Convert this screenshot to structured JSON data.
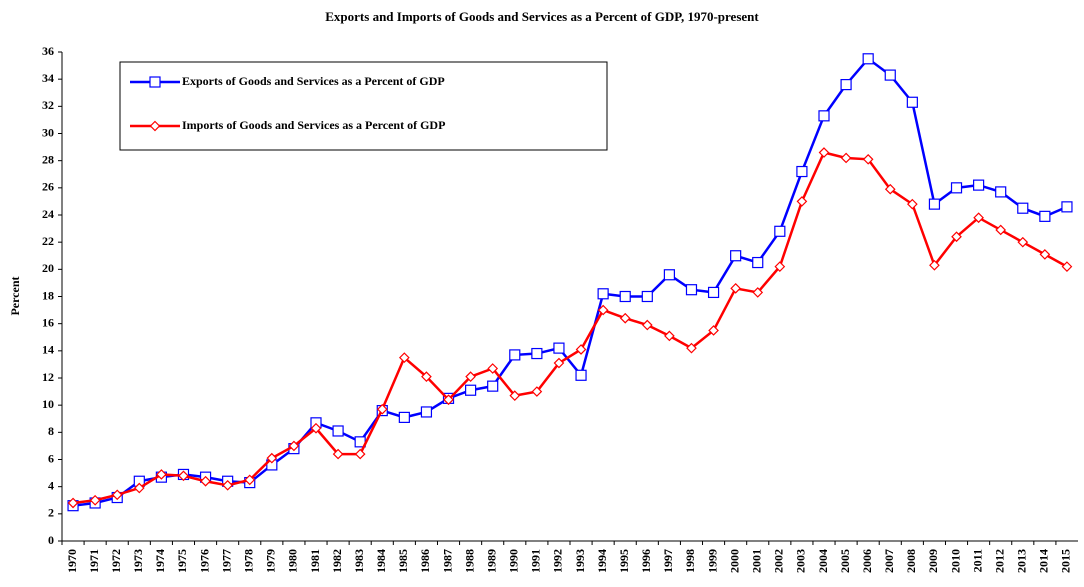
{
  "chart_data": {
    "type": "line",
    "title": "Exports and Imports of Goods and Services as a Percent of GDP, 1970-present",
    "y_label": "Percent",
    "categories": [
      "1970",
      "1971",
      "1972",
      "1973",
      "1974",
      "1975",
      "1976",
      "1977",
      "1978",
      "1979",
      "1980",
      "1981",
      "1982",
      "1983",
      "1984",
      "1985",
      "1986",
      "1987",
      "1988",
      "1989",
      "1990",
      "1991",
      "1992",
      "1993",
      "1994",
      "1995",
      "1996",
      "1997",
      "1998",
      "1999",
      "2000",
      "2001",
      "2002",
      "2003",
      "2004",
      "2005",
      "2006",
      "2007",
      "2008",
      "2009",
      "2010",
      "2011",
      "2012",
      "2013",
      "2014",
      "2015"
    ],
    "series": [
      {
        "name": "Exports of Goods and Services as a Percent of GDP",
        "color": "#0000ff",
        "marker": "square",
        "values": [
          2.6,
          2.8,
          3.2,
          4.4,
          4.7,
          4.9,
          4.7,
          4.4,
          4.3,
          5.6,
          6.8,
          8.7,
          8.1,
          7.3,
          9.6,
          9.1,
          9.5,
          10.5,
          11.1,
          11.4,
          13.7,
          13.8,
          14.2,
          12.2,
          18.2,
          18.0,
          18.0,
          19.6,
          18.5,
          18.3,
          21.0,
          20.5,
          22.8,
          27.2,
          31.3,
          33.6,
          35.5,
          34.3,
          32.3,
          24.8,
          26.0,
          26.2,
          25.7,
          24.5,
          23.9,
          24.6
        ]
      },
      {
        "name": "Imports of Goods and Services as a Percent of GDP",
        "color": "#ff0000",
        "marker": "diamond",
        "values": [
          2.8,
          3.0,
          3.4,
          3.9,
          4.9,
          4.8,
          4.4,
          4.1,
          4.5,
          6.1,
          7.0,
          8.3,
          6.4,
          6.4,
          9.7,
          13.5,
          12.1,
          10.4,
          12.1,
          12.7,
          10.7,
          11.0,
          13.1,
          14.1,
          17.0,
          16.4,
          15.9,
          15.1,
          14.2,
          15.5,
          18.6,
          18.3,
          20.2,
          25.0,
          28.6,
          28.2,
          28.1,
          25.9,
          24.8,
          20.3,
          22.4,
          23.8,
          22.9,
          22.0,
          21.1,
          20.2
        ]
      }
    ],
    "ylim": [
      0,
      36
    ],
    "yticks": [
      0,
      2,
      4,
      6,
      8,
      10,
      12,
      14,
      16,
      18,
      20,
      22,
      24,
      26,
      28,
      30,
      32,
      34,
      36
    ],
    "grid": false,
    "legend": "upper left"
  }
}
